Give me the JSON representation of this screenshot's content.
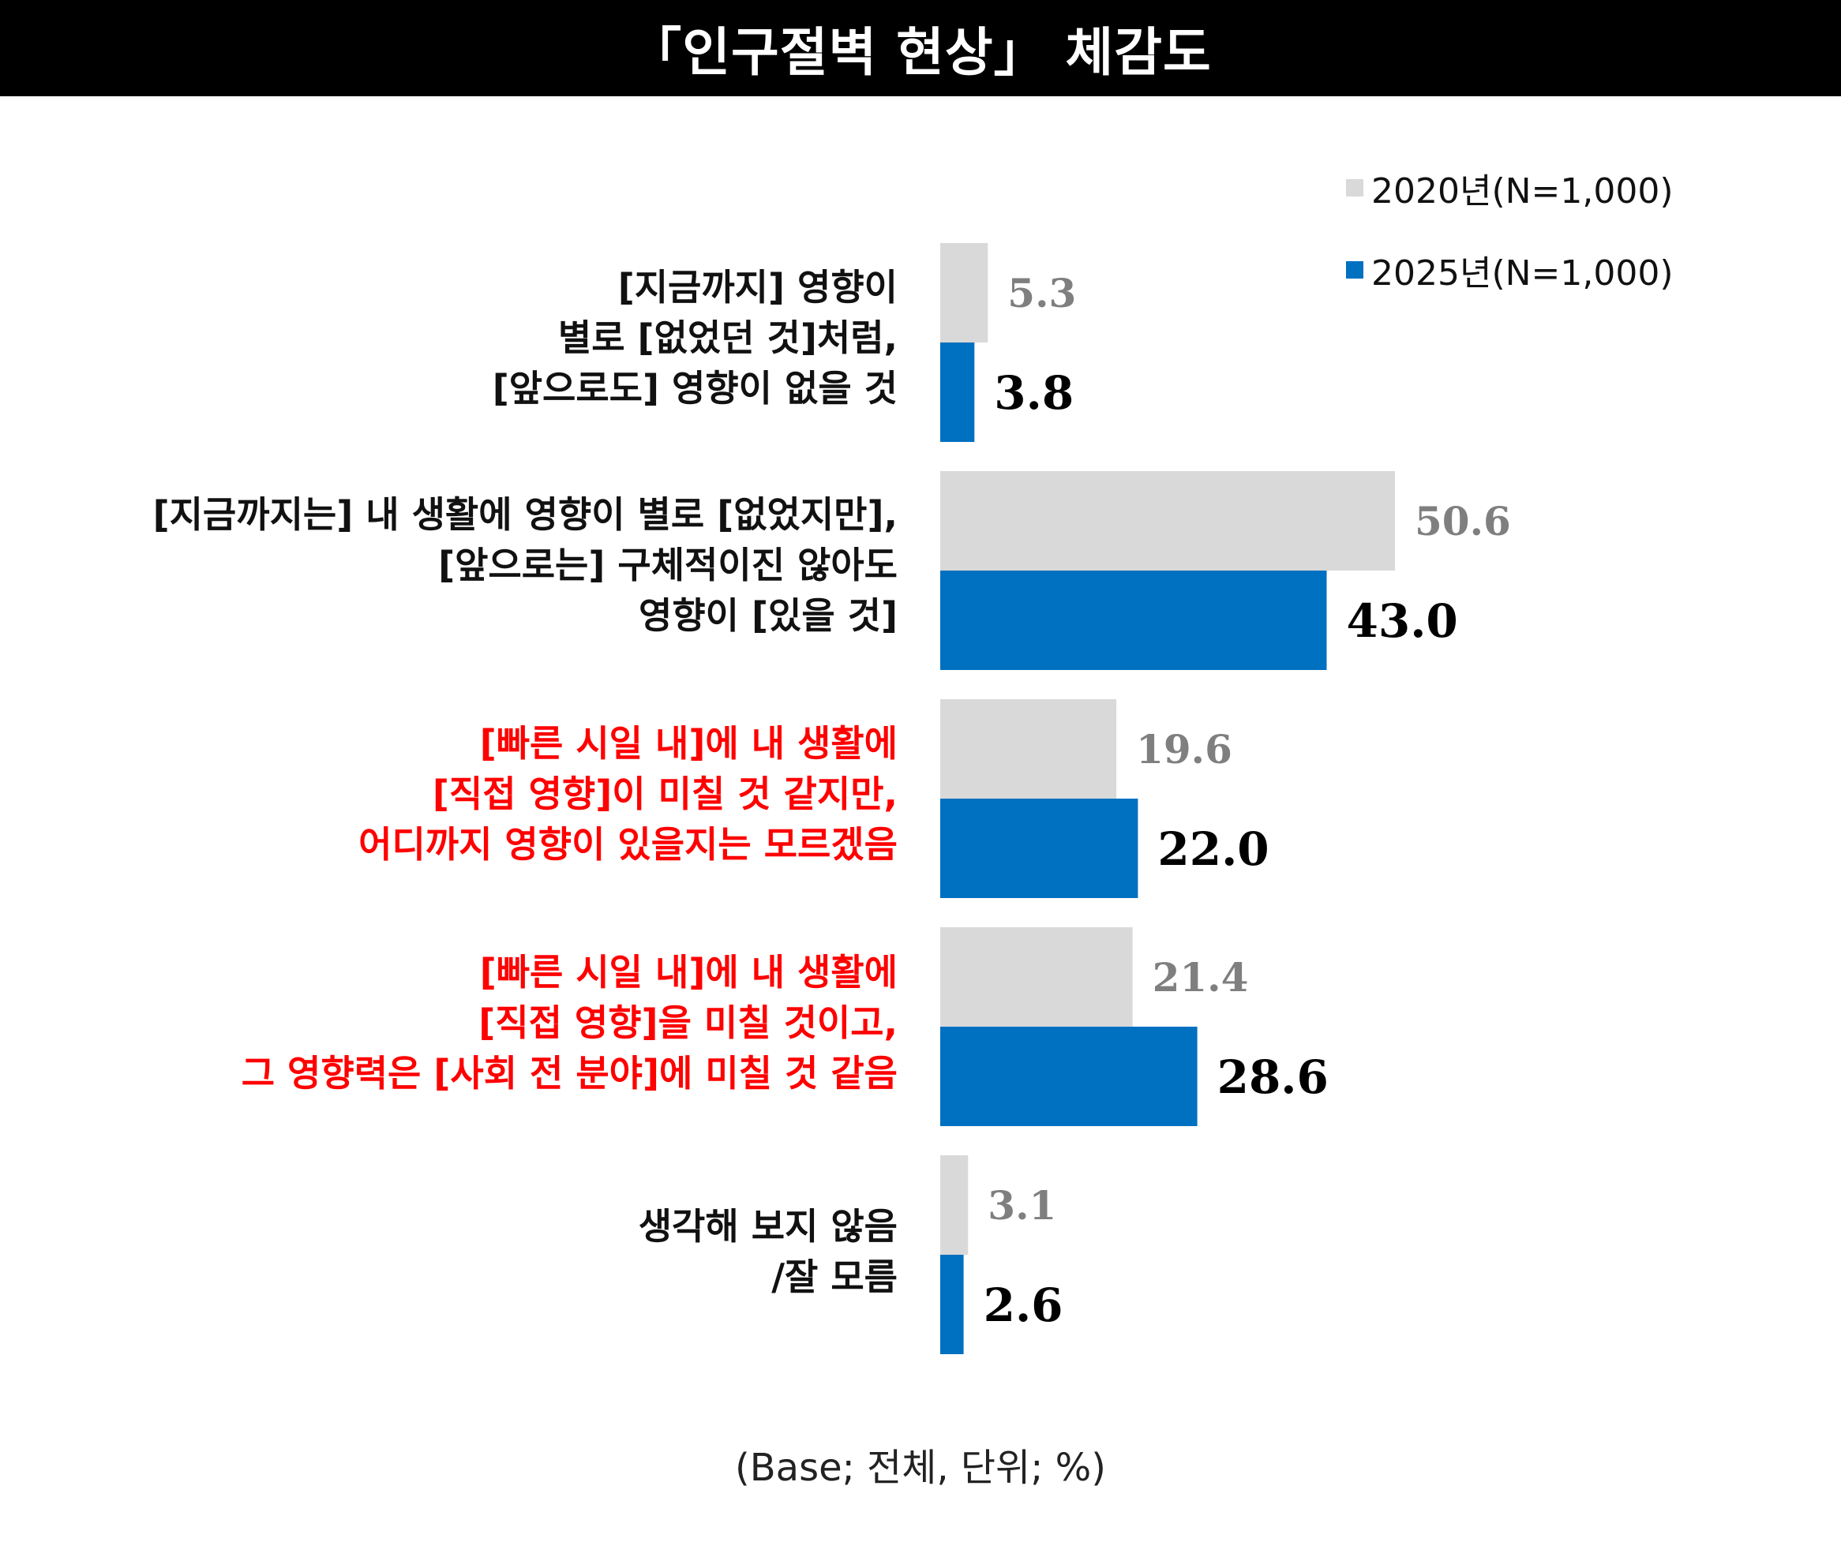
{
  "title": "「인구절벽 현상」 체감도",
  "footnote": "(Base; 전체, 단위; %)",
  "colors": {
    "series_2020": "#d9d9d9",
    "series_2025": "#0070c0",
    "label_2020": "#7f7f7f",
    "label_2025": "#000000",
    "highlight_text": "#ff0000",
    "normal_text": "#111111"
  },
  "legend": [
    {
      "label": "2020년(N=1,000)"
    },
    {
      "label": "2025년(N=1,000)"
    }
  ],
  "categories": [
    {
      "lines": [
        "[지금까지] 영향이",
        "별로 [없었던 것]처럼,",
        "[앞으로도] 영향이 없을 것"
      ],
      "highlight": false
    },
    {
      "lines": [
        "[지금까지는] 내 생활에 영향이 별로 [없었지만],",
        "[앞으로는] 구체적이진 않아도",
        "영향이 [있을 것]"
      ],
      "highlight": false
    },
    {
      "lines": [
        "[빠른 시일 내]에 내 생활에",
        "[직접 영향]이 미칠 것 같지만,",
        "어디까지 영향이 있을지는 모르겠음"
      ],
      "highlight": true
    },
    {
      "lines": [
        "[빠른 시일 내]에 내 생활에",
        "[직접 영향]을 미칠 것이고,",
        "그 영향력은 [사회 전 분야]에 미칠 것 같음"
      ],
      "highlight": true
    },
    {
      "lines": [
        "생각해 보지 않음",
        "/잘 모름"
      ],
      "highlight": false
    }
  ],
  "chart_data": {
    "type": "bar",
    "orientation": "horizontal",
    "title": "「인구절벽 현상」 체감도",
    "categories": [
      "[지금까지] 영향이 별로 [없었던 것]처럼, [앞으로도] 영향이 없을 것",
      "[지금까지는] 내 생활에 영향이 별로 [없었지만], [앞으로는] 구체적이진 않아도 영향이 [있을 것]",
      "[빠른 시일 내]에 내 생활에 [직접 영향]이 미칠 것 같지만, 어디까지 영향이 있을지는 모르겠음",
      "[빠른 시일 내]에 내 생활에 [직접 영향]을 미칠 것이고, 그 영향력은 [사회 전 분야]에 미칠 것 같음",
      "생각해 보지 않음 /잘 모름"
    ],
    "series": [
      {
        "name": "2020년(N=1,000)",
        "values": [
          5.3,
          50.6,
          19.6,
          21.4,
          3.1
        ],
        "labels": [
          "5.3",
          "50.6",
          "19.6",
          "21.4",
          "3.1"
        ]
      },
      {
        "name": "2025년(N=1,000)",
        "values": [
          3.8,
          43.0,
          22.0,
          28.6,
          2.6
        ],
        "labels": [
          "3.8",
          "43.0",
          "22.0",
          "28.6",
          "2.6"
        ]
      }
    ],
    "xlim": [
      0,
      50.6
    ],
    "grid": false,
    "legend_position": "top-right"
  }
}
